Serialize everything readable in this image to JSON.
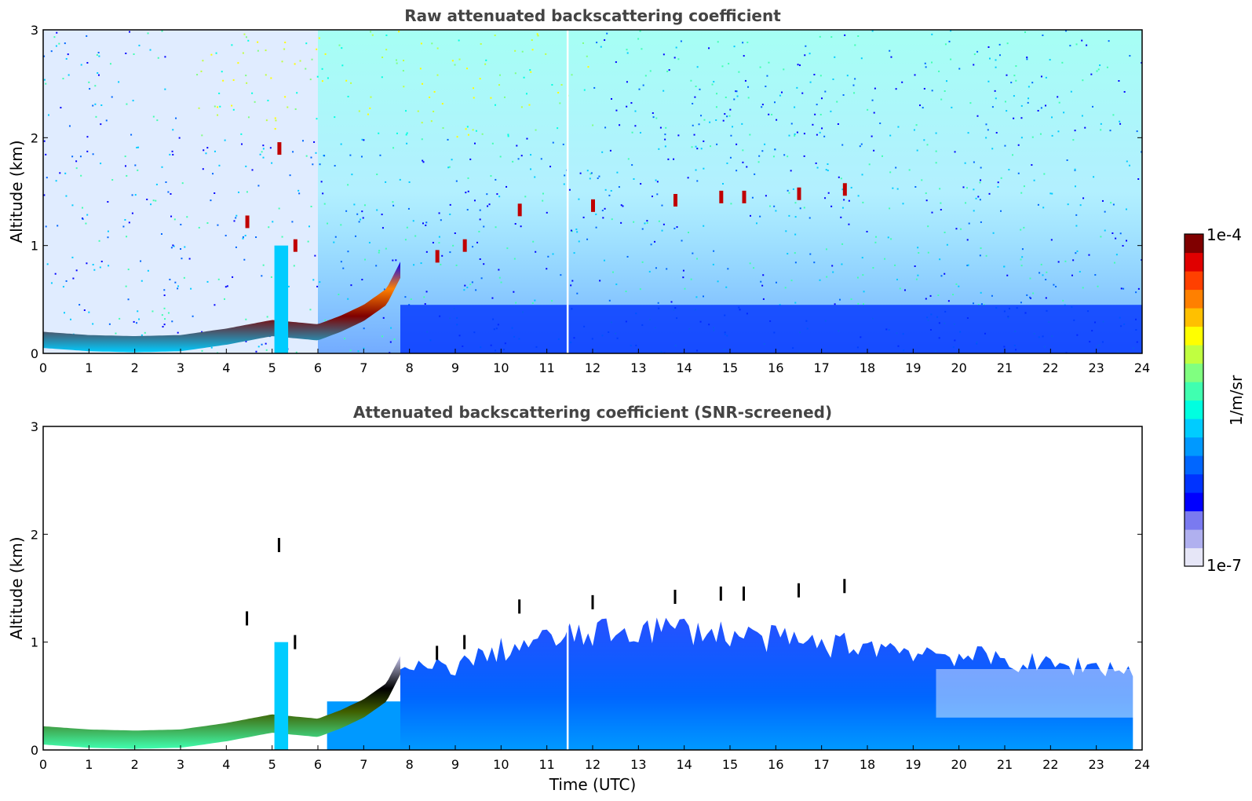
{
  "colorbar": {
    "max_label": "1e-4",
    "min_label": "1e-7",
    "unit_label": "1/m/sr",
    "range": [
      1e-07,
      0.0001
    ],
    "scale": "log",
    "colormap": [
      "#e6e6f7",
      "#b0b0ef",
      "#7a7af0",
      "#0000ff",
      "#0033ff",
      "#0066ff",
      "#0099ff",
      "#00ccff",
      "#00ffe0",
      "#40ffb0",
      "#80ff80",
      "#c0ff40",
      "#ffff00",
      "#ffc000",
      "#ff8000",
      "#ff4000",
      "#e00000",
      "#800000"
    ]
  },
  "xaxis": {
    "label": "Time (UTC)",
    "range": [
      0,
      24
    ],
    "ticks": [
      "0",
      "1",
      "2",
      "3",
      "4",
      "5",
      "6",
      "7",
      "8",
      "9",
      "10",
      "11",
      "12",
      "13",
      "14",
      "15",
      "16",
      "17",
      "18",
      "19",
      "20",
      "21",
      "22",
      "23",
      "24"
    ]
  },
  "chart_data": [
    {
      "type": "heatmap",
      "title": "Raw attenuated backscattering coefficient",
      "xlabel": "",
      "ylabel": "Altitude (km)",
      "xlim": [
        0,
        24
      ],
      "ylim": [
        0,
        3
      ],
      "yticks": [
        "0",
        "1",
        "2",
        "3"
      ],
      "colorbar_range": [
        1e-07,
        0.0001
      ],
      "boundary_layer_top_km": {
        "time_utc": [
          0,
          1,
          2,
          3,
          4,
          5,
          6,
          6.5,
          7,
          7.5,
          7.8
        ],
        "altitude_km": [
          0.15,
          0.12,
          0.11,
          0.12,
          0.18,
          0.26,
          0.22,
          0.3,
          0.4,
          0.55,
          0.8
        ]
      },
      "cloud_features": [
        {
          "time_utc": 4.45,
          "altitude_km": 1.22
        },
        {
          "time_utc": 5.15,
          "altitude_km": 1.9
        },
        {
          "time_utc": 5.5,
          "altitude_km": 1.0
        },
        {
          "time_utc": 8.6,
          "altitude_km": 0.9
        },
        {
          "time_utc": 9.2,
          "altitude_km": 1.0
        },
        {
          "time_utc": 10.4,
          "altitude_km": 1.33
        },
        {
          "time_utc": 12.0,
          "altitude_km": 1.37
        },
        {
          "time_utc": 13.8,
          "altitude_km": 1.42
        },
        {
          "time_utc": 14.8,
          "altitude_km": 1.45
        },
        {
          "time_utc": 15.3,
          "altitude_km": 1.45
        },
        {
          "time_utc": 16.5,
          "altitude_km": 1.48
        },
        {
          "time_utc": 17.5,
          "altitude_km": 1.52
        }
      ],
      "data_gap_time_utc": 11.45
    },
    {
      "type": "heatmap",
      "title": "Attenuated backscattering coefficient (SNR-screened)",
      "xlabel": "Time (UTC)",
      "ylabel": "Altitude (km)",
      "xlim": [
        0,
        24
      ],
      "ylim": [
        0,
        3
      ],
      "yticks": [
        "0",
        "1",
        "2",
        "3"
      ],
      "colorbar_range": [
        1e-07,
        0.0001
      ],
      "aerosol_layer_top_km": {
        "time_utc": [
          7.8,
          9,
          10,
          11,
          12,
          13,
          14,
          15,
          16,
          17,
          18,
          19,
          20,
          21,
          22,
          23,
          23.8
        ],
        "altitude_km": [
          0.75,
          0.8,
          0.95,
          1.05,
          1.1,
          1.15,
          1.15,
          1.1,
          1.05,
          1.0,
          1.0,
          0.95,
          0.9,
          0.85,
          0.8,
          0.8,
          0.75
        ]
      },
      "data_gap_time_utc": 11.45
    }
  ]
}
